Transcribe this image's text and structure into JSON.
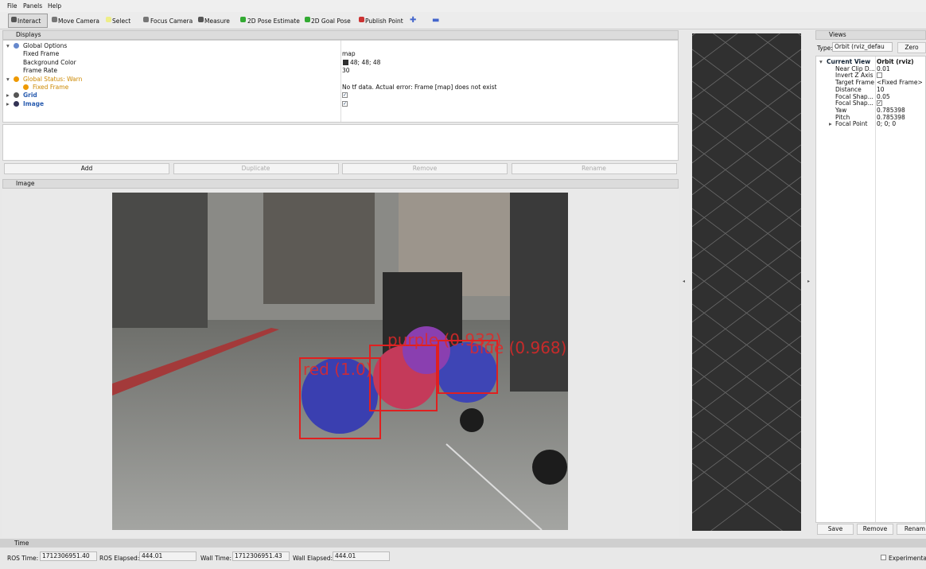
{
  "menu": [
    "File",
    "Panels",
    "Help"
  ],
  "toolbar": [
    "Interact",
    "Move Camera",
    "Select",
    "Focus Camera",
    "Measure",
    "2D Pose Estimate",
    "2D Goal Pose",
    "Publish Point"
  ],
  "displays": {
    "title": "Displays",
    "rows": [
      {
        "label": "Global Options"
      },
      {
        "label": "Fixed Frame",
        "value": "map"
      },
      {
        "label": "Background Color",
        "value": "48; 48; 48"
      },
      {
        "label": "Frame Rate",
        "value": "30"
      },
      {
        "label": "Global Status: Warn"
      },
      {
        "label": "Fixed Frame",
        "value": "No tf data.  Actual error: Frame [map] does not exist"
      },
      {
        "label": "Grid"
      },
      {
        "label": "Image"
      }
    ],
    "buttons": [
      "Add",
      "Duplicate",
      "Remove",
      "Rename"
    ]
  },
  "image_panel": {
    "title": "Image",
    "detections": [
      "red (1.0)",
      "purple (0.932)",
      "blue (0.968)"
    ]
  },
  "views": {
    "title": "Views",
    "type_label": "Type:",
    "type_value": "Orbit (rviz_defau",
    "zero": "Zero",
    "rows": [
      {
        "label": "Current View",
        "value": "Orbit (rviz)"
      },
      {
        "label": "Near Clip D...",
        "value": "0.01"
      },
      {
        "label": "Invert Z Axis"
      },
      {
        "label": "Target Frame",
        "value": "<Fixed Frame>"
      },
      {
        "label": "Distance",
        "value": "10"
      },
      {
        "label": "Focal Shap...",
        "value": "0.05"
      },
      {
        "label": "Focal Shap..."
      },
      {
        "label": "Yaw",
        "value": "0.785398"
      },
      {
        "label": "Pitch",
        "value": "0.785398"
      },
      {
        "label": "Focal Point",
        "value": "0; 0; 0"
      }
    ],
    "buttons": [
      "Save",
      "Remove",
      "Renam"
    ]
  },
  "time": {
    "title": "Time",
    "fields": [
      {
        "label": "ROS Time:",
        "value": "1712306951.40"
      },
      {
        "label": "ROS Elapsed:",
        "value": "444.01"
      },
      {
        "label": "Wall Time:",
        "value": "1712306951.43"
      },
      {
        "label": "Wall Elapsed:",
        "value": "444.01"
      }
    ],
    "experimental": "Experimental"
  }
}
